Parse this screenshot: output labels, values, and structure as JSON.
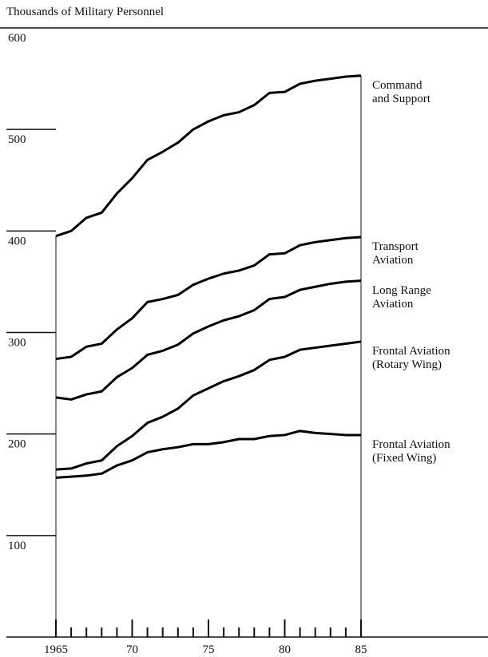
{
  "chart_data": {
    "type": "line",
    "title": "Thousands of Military Personnel",
    "x": [
      1965,
      1966,
      1967,
      1968,
      1969,
      1970,
      1971,
      1972,
      1973,
      1974,
      1975,
      1976,
      1977,
      1978,
      1979,
      1980,
      1981,
      1982,
      1983,
      1984,
      1985
    ],
    "series": [
      {
        "name": "Command\nand Support",
        "color": "#000000",
        "values": [
          395,
          400,
          413,
          418,
          437,
          452,
          470,
          478,
          487,
          500,
          508,
          514,
          517,
          524,
          536,
          537,
          545,
          548,
          550,
          552,
          553
        ]
      },
      {
        "name": "Transport\nAviation",
        "color": "#000000",
        "values": [
          274,
          276,
          286,
          289,
          303,
          314,
          330,
          333,
          337,
          347,
          353,
          358,
          361,
          366,
          377,
          378,
          386,
          389,
          391,
          393,
          394
        ]
      },
      {
        "name": "Long Range\nAviation",
        "color": "#000000",
        "values": [
          236,
          234,
          239,
          242,
          256,
          265,
          278,
          282,
          288,
          299,
          306,
          312,
          316,
          322,
          333,
          335,
          342,
          345,
          348,
          350,
          351
        ]
      },
      {
        "name": "Frontal Aviation\n(Rotary Wing)",
        "color": "#000000",
        "values": [
          165,
          166,
          171,
          174,
          188,
          198,
          211,
          217,
          225,
          238,
          245,
          252,
          257,
          263,
          273,
          276,
          283,
          285,
          287,
          289,
          291
        ]
      },
      {
        "name": "Frontal Aviation\n(Fixed Wing)",
        "color": "#000000",
        "values": [
          157,
          158,
          159,
          161,
          169,
          174,
          182,
          185,
          187,
          190,
          190,
          192,
          195,
          195,
          198,
          199,
          203,
          201,
          200,
          199,
          199
        ]
      }
    ],
    "xlim": [
      1965,
      1985
    ],
    "xticks": [
      1965,
      {
        "value": 1970,
        "label": "70"
      },
      {
        "value": 1975,
        "label": "75"
      },
      {
        "value": 1980,
        "label": "80"
      },
      {
        "value": 1985,
        "label": "85"
      }
    ],
    "xminor_ticks": [
      1966,
      1967,
      1968,
      1969,
      1971,
      1972,
      1973,
      1974,
      1976,
      1977,
      1978,
      1979,
      1981,
      1982,
      1983,
      1984
    ],
    "ylim": [
      0,
      600
    ],
    "yticks": [
      100,
      200,
      300,
      400,
      500,
      600
    ]
  }
}
